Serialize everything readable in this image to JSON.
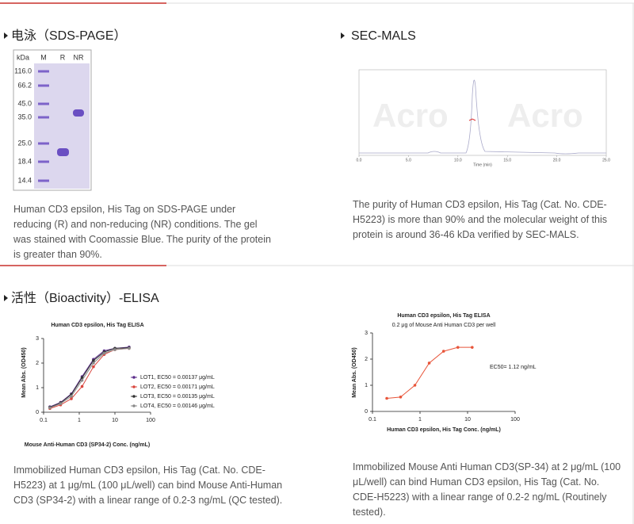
{
  "sections": [
    {
      "panels": [
        {
          "title": "电泳（SDS-PAGE）",
          "gel": {
            "header": [
              "kDa",
              "M",
              "R",
              "NR"
            ],
            "markers": [
              "116.0",
              "66.2",
              "45.0",
              "35.0",
              "25.0",
              "18.4",
              "14.4"
            ]
          },
          "description": "Human CD3 epsilon, His Tag on SDS-PAGE under reducing (R) and non-reducing (NR) conditions. The gel was stained with Coomassie Blue. The purity of the protein is greater than 90%."
        },
        {
          "title": "SEC-MALS",
          "figure": {
            "watermark": "Acro",
            "xlabel": "Time (min)",
            "xlim": [
              0,
              25
            ],
            "xticks": [
              {
                "value": 0,
                "label": "0.0"
              },
              {
                "value": 5,
                "label": "5.0"
              },
              {
                "value": 10,
                "label": "10.0"
              },
              {
                "value": 15,
                "label": "15.0"
              },
              {
                "value": 20,
                "label": "20.0"
              },
              {
                "value": 25,
                "label": "25.0"
              }
            ]
          },
          "description": "The purity of Human CD3 epsilon, His Tag (Cat. No. CDE-H5223) is more than 90% and the molecular weight of this protein is around 36-46 kDa verified by SEC-MALS."
        }
      ]
    },
    {
      "title": "活性（Bioactivity）-ELISA",
      "panels": [
        {
          "chart": {
            "type": "line",
            "title": "Human CD3 epsilon, His Tag ELISA",
            "xlabel": "Mouse Anti-Human CD3 (SP34-2) Conc. (ng/mL)",
            "ylabel": "Mean Abs. (OD450)",
            "xlog": true,
            "xlim": [
              0.1,
              100
            ],
            "xticks": [
              0.1,
              1,
              10,
              100
            ],
            "ylim": [
              0,
              3
            ],
            "yticks": [
              0,
              1,
              2,
              3
            ],
            "x": [
              0.15,
              0.3,
              0.6,
              1.2,
              2.5,
              5,
              10,
              25
            ],
            "series": [
              {
                "name": "LOT1, EC50 = 0.00137 μg/mL",
                "color": "#5b2c8a",
                "values": [
                  0.22,
                  0.4,
                  0.75,
                  1.45,
                  2.15,
                  2.5,
                  2.6,
                  2.65
                ]
              },
              {
                "name": "LOT2, EC50 = 0.00171 μg/mL",
                "color": "#d9473f",
                "values": [
                  0.15,
                  0.3,
                  0.55,
                  1.05,
                  1.85,
                  2.35,
                  2.55,
                  2.6
                ]
              },
              {
                "name": "LOT3, EC50 = 0.00135 μg/mL",
                "color": "#333333",
                "values": [
                  0.2,
                  0.38,
                  0.72,
                  1.4,
                  2.1,
                  2.45,
                  2.6,
                  2.62
                ]
              },
              {
                "name": "LOT4, EC50 = 0.00146 μg/mL",
                "color": "#8a8a8a",
                "values": [
                  0.18,
                  0.35,
                  0.65,
                  1.3,
                  2.0,
                  2.4,
                  2.55,
                  2.6
                ]
              }
            ]
          },
          "description": "Immobilized Human CD3 epsilon, His Tag (Cat. No. CDE-H5223) at 1 μg/mL (100 μL/well) can bind Mouse Anti-Human CD3 (SP34-2) with a linear range of 0.2-3 ng/mL (QC tested)."
        },
        {
          "chart": {
            "type": "line",
            "title": "Human CD3 epsilon, His Tag ELISA",
            "subtitle": "0.2 μg of Mouse Anti Human CD3 per well",
            "annotation": "EC50= 1.12 ng/mL",
            "xlabel": "Human CD3 epsilon, His Tag Conc. (ng/mL)",
            "ylabel": "Mean Abs. (OD450)",
            "xlog": true,
            "xlim": [
              0.1,
              100
            ],
            "xticks": [
              0.1,
              1,
              10,
              100
            ],
            "ylim": [
              0,
              3
            ],
            "yticks": [
              0,
              1,
              2,
              3
            ],
            "x": [
              0.2,
              0.39,
              0.78,
              1.56,
              3.13,
              6.25,
              12.5
            ],
            "series": [
              {
                "color": "#e8553a",
                "values": [
                  0.5,
                  0.55,
                  1.0,
                  1.85,
                  2.3,
                  2.45,
                  2.45
                ]
              }
            ]
          },
          "description": "Immobilized Mouse Anti Human CD3(SP-34) at 2 μg/mL (100 μL/well) can bind Human CD3 epsilon, His Tag (Cat. No. CDE-H5223) with a linear range of 0.2-2 ng/mL (Routinely tested)."
        }
      ]
    }
  ]
}
